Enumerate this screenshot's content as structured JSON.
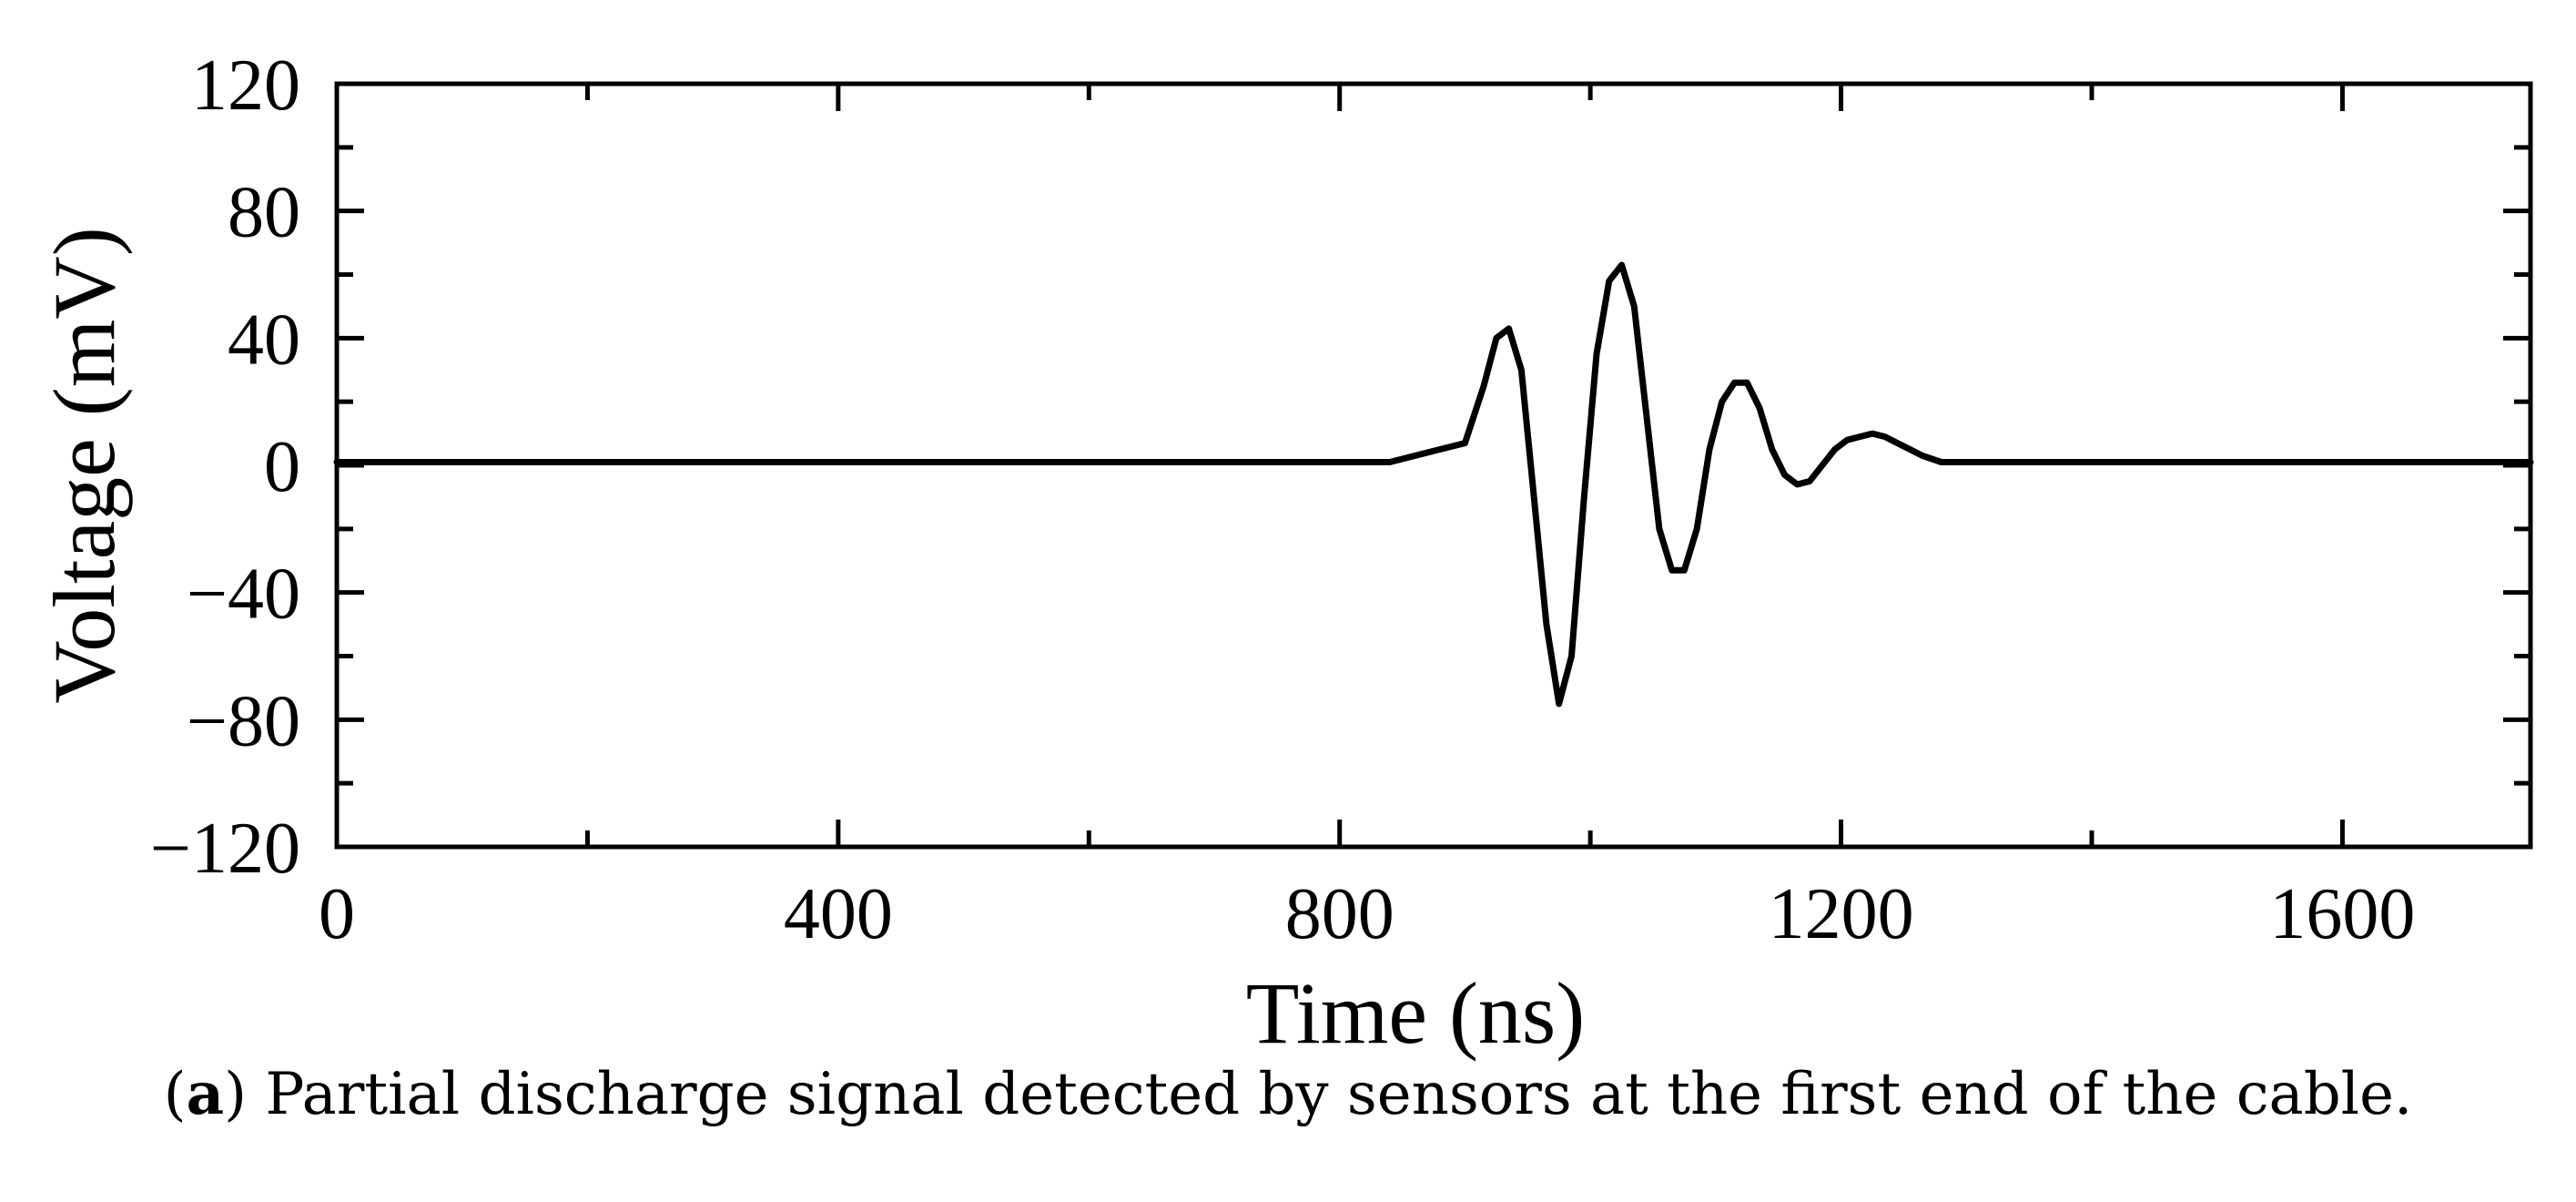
{
  "chart_data": {
    "type": "line",
    "xlabel": "Time (ns)",
    "ylabel": "Voltage (mV)",
    "xlim": [
      0,
      1750
    ],
    "ylim": [
      -120,
      120
    ],
    "x_ticks": [
      0,
      400,
      800,
      1200,
      1600
    ],
    "x_tick_labels": [
      "0",
      "400",
      "800",
      "1200",
      "1600"
    ],
    "x_minor_ticks": [
      200,
      600,
      1000,
      1400
    ],
    "y_ticks": [
      -120,
      -80,
      -40,
      0,
      40,
      80,
      120
    ],
    "y_tick_labels": [
      "−120",
      "−80",
      "−40",
      "0",
      "40",
      "80",
      "120"
    ],
    "y_minor_ticks": [
      -100,
      -60,
      -20,
      20,
      60,
      100
    ],
    "grid": false,
    "color": "#000000",
    "series": [
      {
        "x": [
          0,
          100,
          200,
          300,
          400,
          500,
          600,
          700,
          800,
          840,
          860,
          880,
          900,
          915,
          925,
          935,
          945,
          955,
          965,
          975,
          985,
          995,
          1005,
          1015,
          1025,
          1035,
          1045,
          1055,
          1065,
          1075,
          1085,
          1095,
          1105,
          1115,
          1125,
          1135,
          1145,
          1155,
          1165,
          1175,
          1185,
          1195,
          1205,
          1215,
          1225,
          1235,
          1245,
          1255,
          1265,
          1280,
          1300,
          1400,
          1500,
          1600,
          1700,
          1750
        ],
        "y": [
          1,
          1,
          1,
          1,
          1,
          1,
          1,
          1,
          1,
          1,
          3,
          5,
          7,
          25,
          40,
          43,
          30,
          -10,
          -50,
          -75,
          -60,
          -10,
          35,
          58,
          63,
          50,
          15,
          -20,
          -33,
          -33,
          -20,
          5,
          20,
          26,
          26,
          18,
          5,
          -3,
          -6,
          -5,
          0,
          5,
          8,
          9,
          10,
          9,
          7,
          5,
          3,
          1,
          1,
          1,
          1,
          1,
          1,
          1
        ]
      }
    ]
  },
  "caption": {
    "label": "a",
    "text": " Partial discharge signal detected by sensors at the first end of the cable."
  }
}
